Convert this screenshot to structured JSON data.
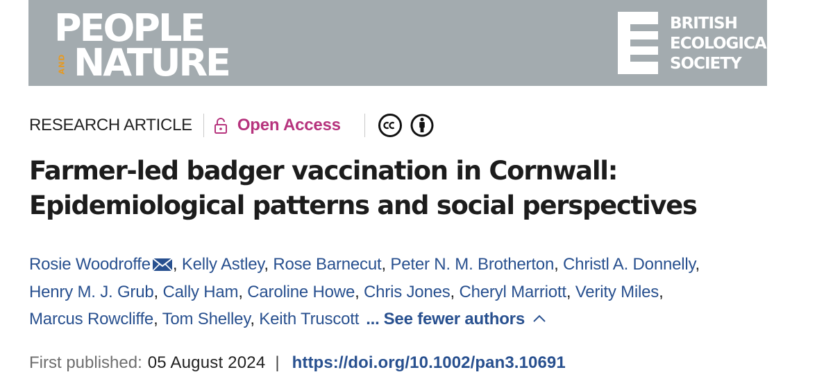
{
  "colors": {
    "banner_bg": "#a3abaf",
    "accent_orange": "#e59a24",
    "accent_pink": "#b6337d",
    "link_blue": "#28508f"
  },
  "banner": {
    "journal_logo": {
      "line1": "PEOPLE",
      "and": "AND",
      "line2": "NATURE"
    },
    "society_logo": {
      "lines": [
        "BRITISH",
        "ECOLOGICAL",
        "SOCIETY"
      ]
    }
  },
  "meta": {
    "article_type": "RESEARCH ARTICLE",
    "access_label": "Open Access",
    "icons": [
      "lock-icon",
      "creative-commons-icon",
      "attribution-icon"
    ]
  },
  "title": {
    "line1": "Farmer-led badger vaccination in Cornwall:",
    "line2": "Epidemiological patterns and social perspectives"
  },
  "authors": {
    "list": [
      "Rosie Woodroffe",
      "Kelly Astley",
      "Rose Barnecut",
      "Peter N. M. Brotherton",
      "Christl A. Donnelly",
      "Henry M. J. Grub",
      "Cally Ham",
      "Caroline Howe",
      "Chris Jones",
      "Cheryl Marriott",
      "Verity Miles",
      "Marcus Rowcliffe",
      "Tom Shelley",
      "Keith Truscott"
    ],
    "ellipsis": "...",
    "toggle_label": "See fewer authors"
  },
  "publication": {
    "label": "First published:",
    "date": "05 August 2024",
    "separator": "|",
    "doi": "https://doi.org/10.1002/pan3.10691"
  }
}
